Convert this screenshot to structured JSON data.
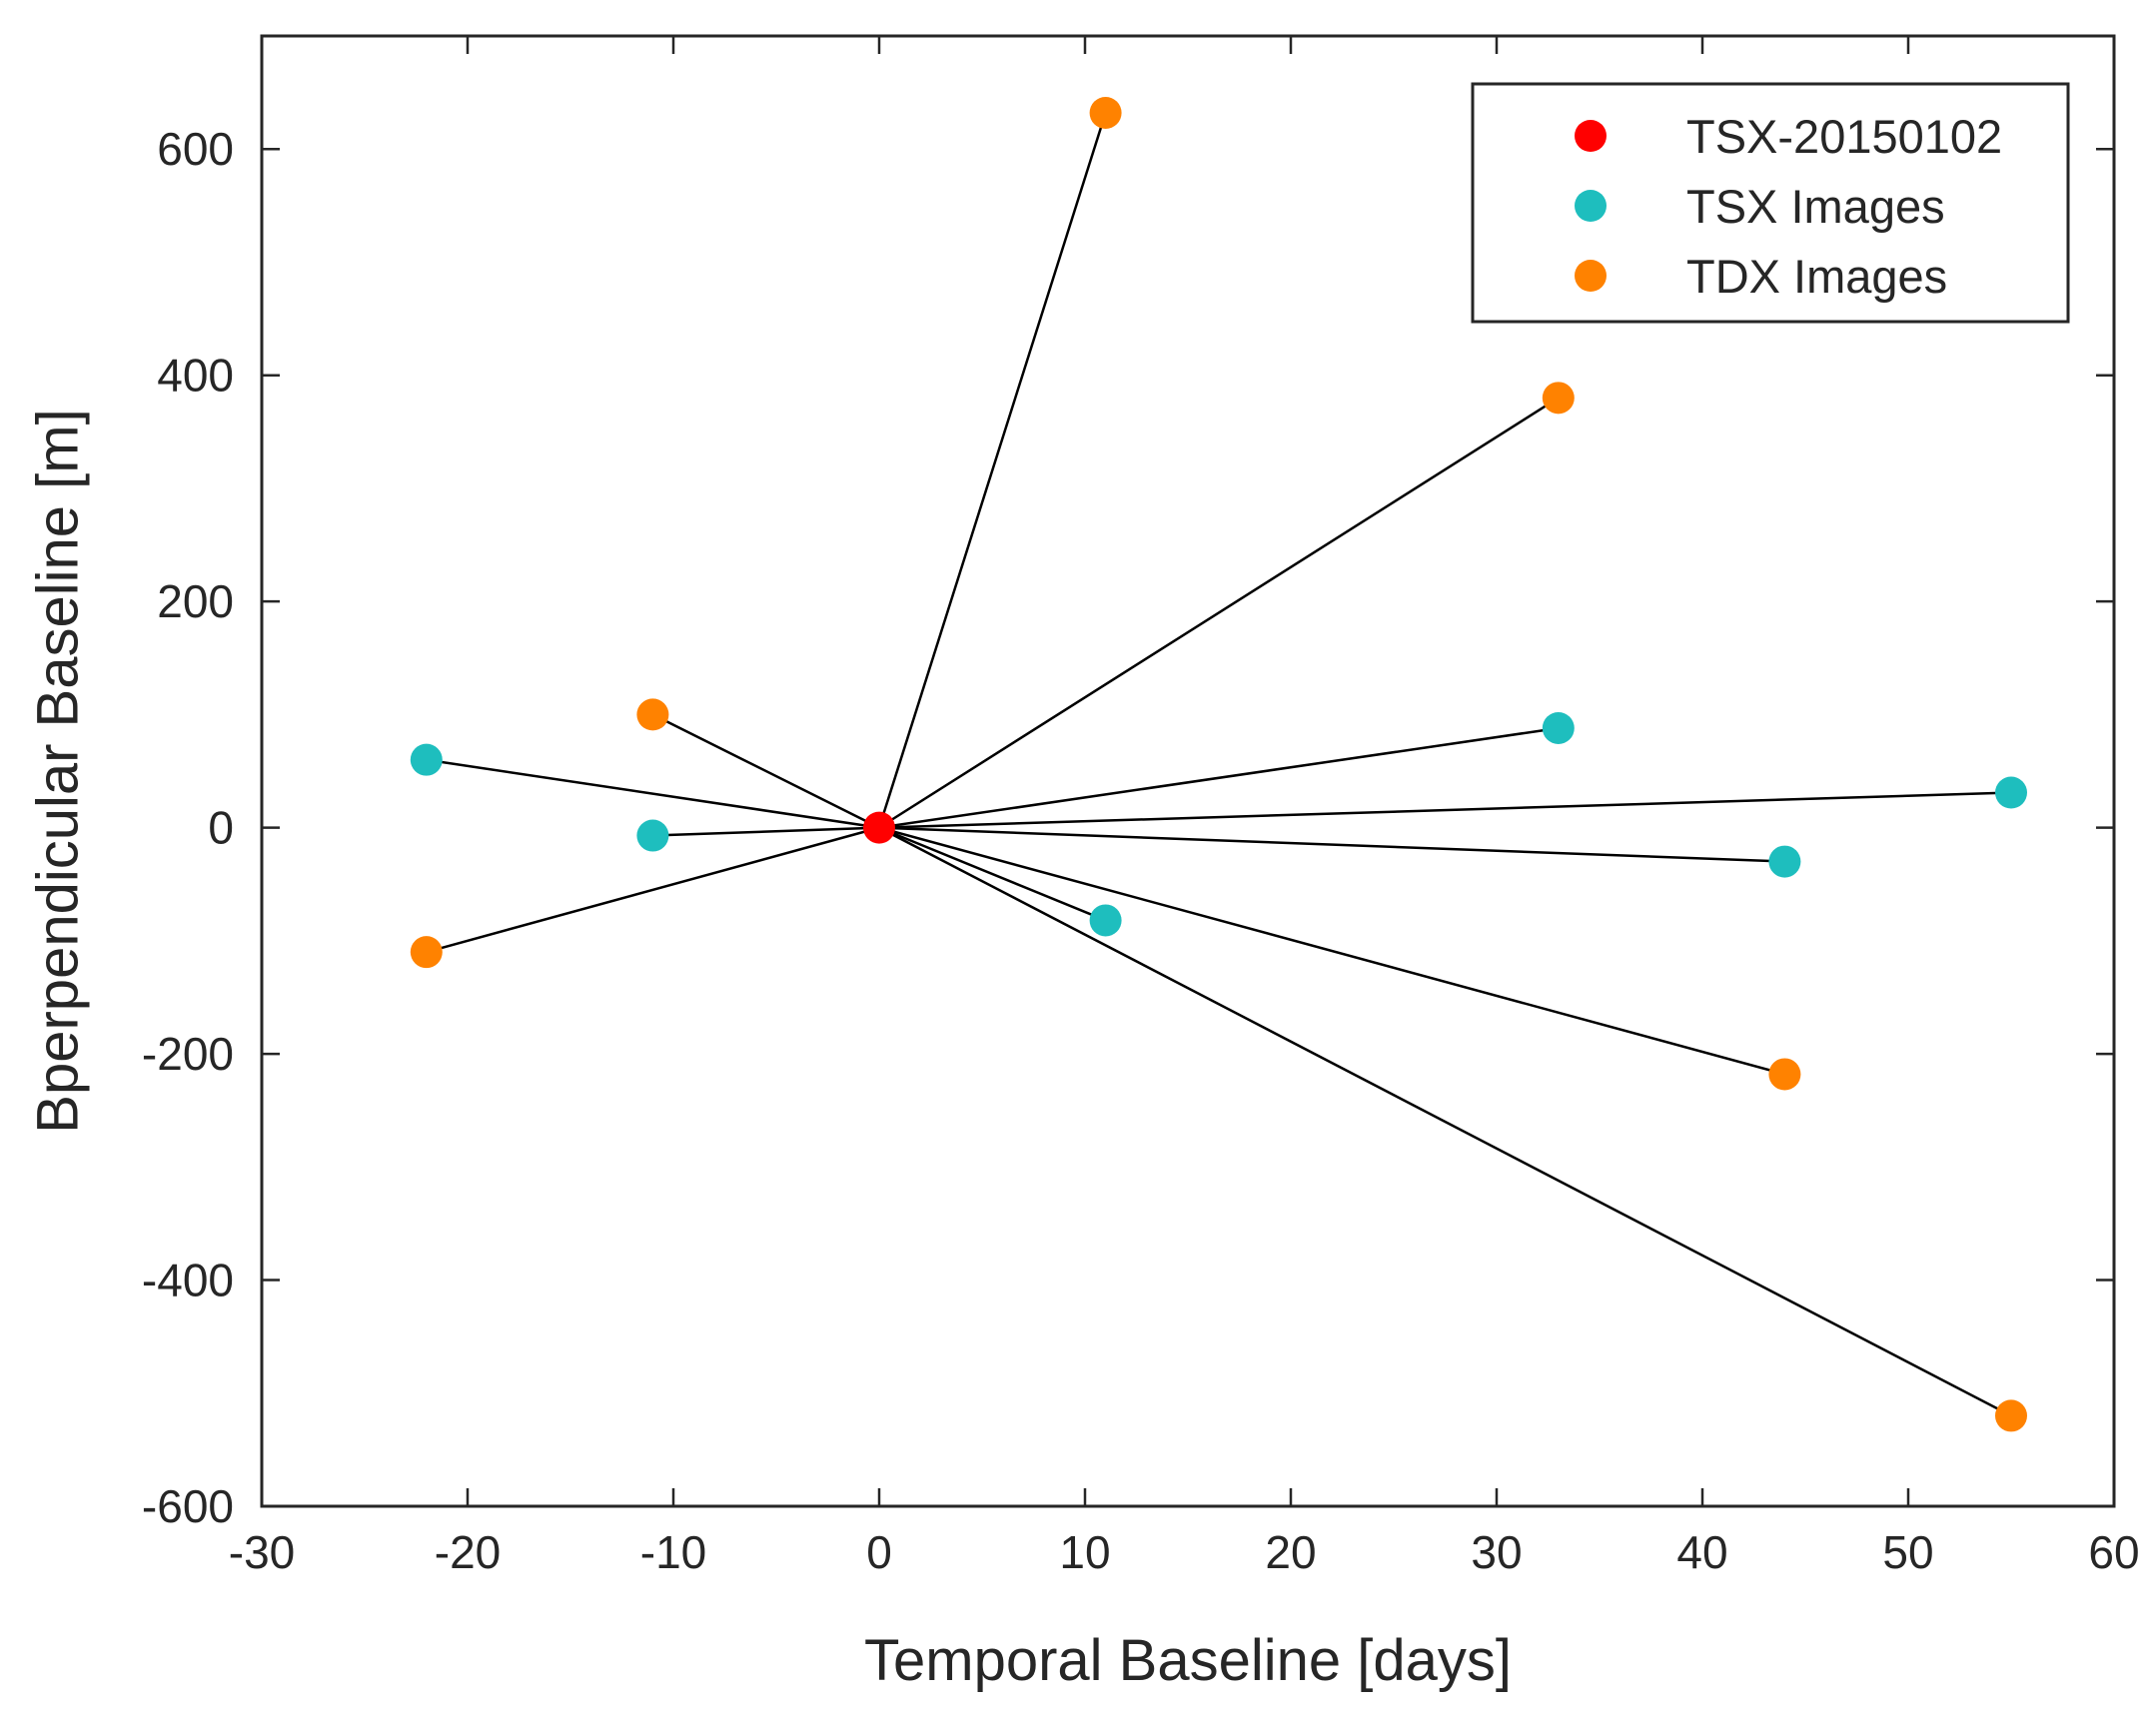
{
  "chart_data": {
    "type": "scatter",
    "xlabel": "Temporal Baseline [days]",
    "ylabel": "Bperpendicular Baseline [m]",
    "xlim": [
      -30,
      60
    ],
    "ylim": [
      -600,
      700
    ],
    "xticks": [
      "-30",
      "-20",
      "-10",
      "0",
      "10",
      "20",
      "30",
      "40",
      "50",
      "60"
    ],
    "yticks": [
      "-600",
      "-400",
      "-200",
      "0",
      "200",
      "400",
      "600"
    ],
    "xtick_values": [
      -30,
      -20,
      -10,
      0,
      10,
      20,
      30,
      40,
      50,
      60
    ],
    "ytick_values": [
      -600,
      -400,
      -200,
      0,
      200,
      400,
      600
    ],
    "grid": false,
    "legend_position": "top-right",
    "reference": {
      "x": 0,
      "y": 0
    },
    "series": [
      {
        "name": "TSX-20150102",
        "color": "#ff0000",
        "points": [
          {
            "x": 0,
            "y": 0
          }
        ]
      },
      {
        "name": "TSX Images",
        "color": "#1ebebe",
        "points": [
          {
            "x": -22,
            "y": 60
          },
          {
            "x": -11,
            "y": -7
          },
          {
            "x": 11,
            "y": -82
          },
          {
            "x": 33,
            "y": 88
          },
          {
            "x": 44,
            "y": -30
          },
          {
            "x": 55,
            "y": 31
          }
        ]
      },
      {
        "name": "TDX Images",
        "color": "#ff8200",
        "points": [
          {
            "x": -22,
            "y": -110
          },
          {
            "x": -11,
            "y": 100
          },
          {
            "x": 11,
            "y": 632
          },
          {
            "x": 33,
            "y": 380
          },
          {
            "x": 44,
            "y": -218
          },
          {
            "x": 55,
            "y": -520
          }
        ]
      }
    ],
    "line_color": "#000000",
    "axis_color": "#262626"
  }
}
